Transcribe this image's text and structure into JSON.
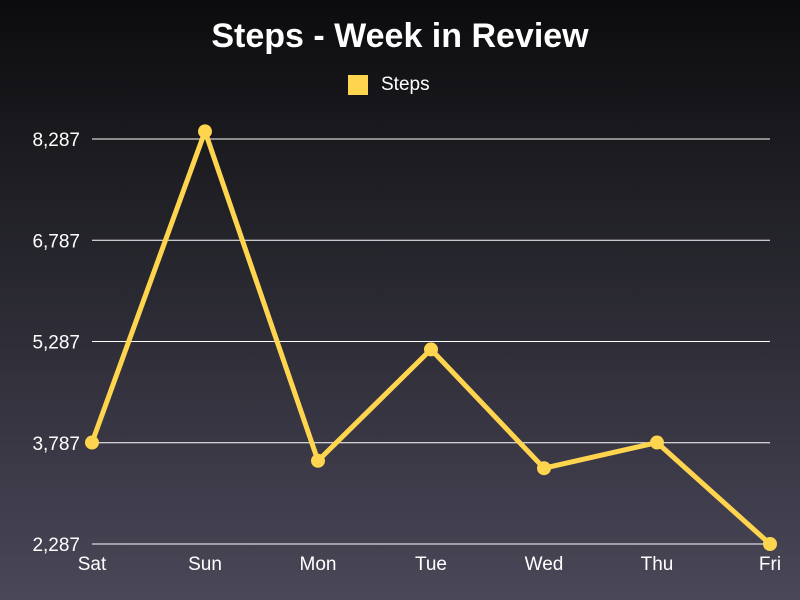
{
  "chart_data": {
    "type": "line",
    "title": "Steps - Week in Review",
    "categories": [
      "Sat",
      "Sun",
      "Mon",
      "Tue",
      "Wed",
      "Thu",
      "Fri"
    ],
    "series": [
      {
        "name": "Steps",
        "values": [
          3790,
          8400,
          3520,
          5170,
          3410,
          3790,
          2287
        ],
        "color": "#ffd54f"
      }
    ],
    "yticks": [
      "2,287",
      "3,787",
      "5,287",
      "6,787",
      "8,287"
    ],
    "ytick_values": [
      2287,
      3787,
      5287,
      6787,
      8287
    ],
    "ylim": [
      2287,
      8287
    ],
    "grid": true,
    "legend_position": "top-center",
    "colors": {
      "grid": "#ffffff",
      "text": "#ffffff"
    }
  }
}
